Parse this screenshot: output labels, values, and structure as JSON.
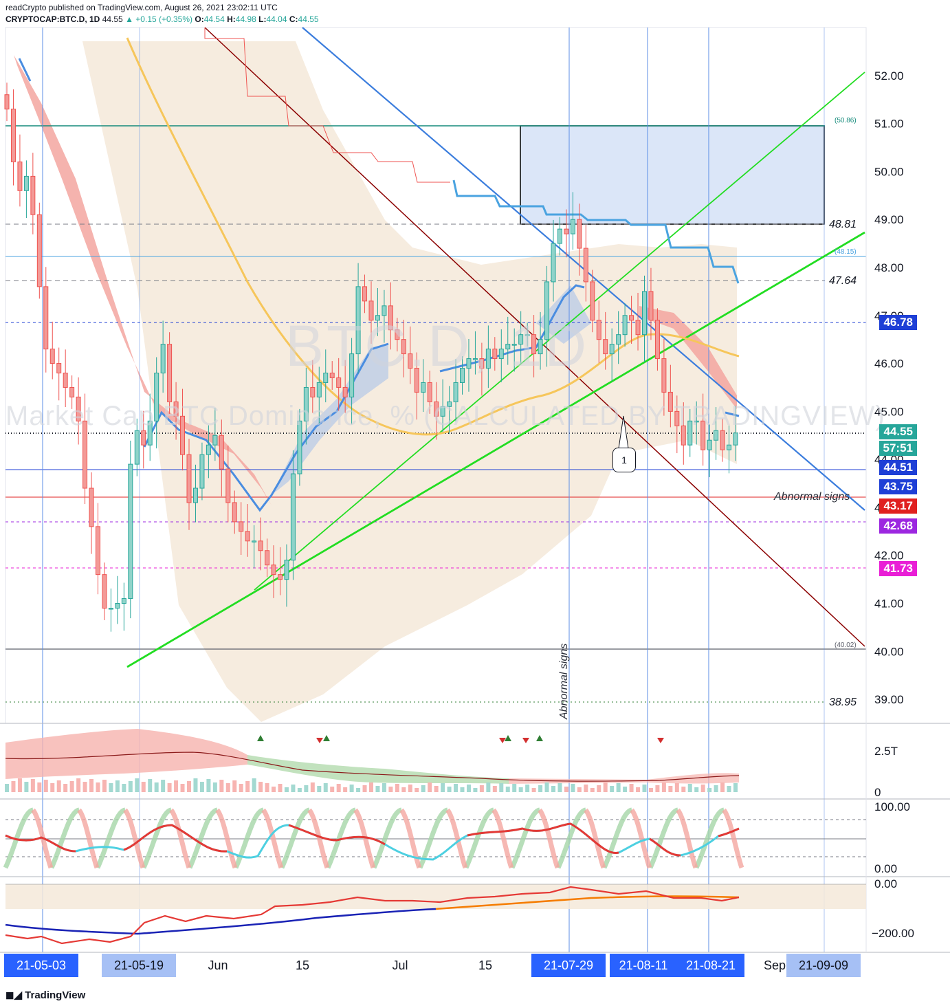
{
  "header": {
    "line1": "readCrypto published on TradingView.com, August 26, 2021 23:02:11 UTC",
    "symbol": "CRYPTOCAP:BTC.D, 1D",
    "last": "44.55",
    "change": "+0.15 (+0.35%)",
    "o_label": "O:",
    "o": "44.54",
    "h_label": "H:",
    "h": "44.98",
    "l_label": "L:",
    "l": "44.04",
    "c_label": "C:",
    "c": "44.55"
  },
  "watermark": {
    "big": "BTC.D, 1D",
    "sub": "Market Cap BTC Dominance, % (CALCULATED BY TRADINGVIEW)"
  },
  "price_labels": [
    {
      "text": "46.78",
      "bg": "#1e3fd6"
    },
    {
      "text": "44.55",
      "bg": "#26a69a"
    },
    {
      "text": "57:51",
      "bg": "#26a69a"
    },
    {
      "text": "44.51",
      "bg": "#1e3fd6"
    },
    {
      "text": "43.75",
      "bg": "#1e3fd6"
    },
    {
      "text": "43.17",
      "bg": "#e02020"
    },
    {
      "text": "42.68",
      "bg": "#9c27e0"
    },
    {
      "text": "41.73",
      "bg": "#e91ed6"
    }
  ],
  "level_texts": {
    "l4881": "48.81",
    "l4764": "47.64",
    "l3895": "38.95",
    "l5086": "(50.86)",
    "l4815": "(48.15)",
    "l4002": "(40.02)"
  },
  "annotations": {
    "abnormal_h": "Abnormal signs",
    "abnormal_v": "Abnormal signs",
    "callout": "1"
  },
  "x_axis": {
    "chips": [
      {
        "text": "21-05-03",
        "style": "dark"
      },
      {
        "text": "21-05-19",
        "style": "light"
      },
      {
        "text": "21-07-29",
        "style": "dark"
      },
      {
        "text": "21-08-11",
        "style": "dark"
      },
      {
        "text": "21-08-21",
        "style": "dark"
      },
      {
        "text": "21-09-09",
        "style": "light"
      }
    ],
    "plain": [
      "Jun",
      "15",
      "Jul",
      "15",
      "Sep"
    ]
  },
  "volume_axis": [
    "2.5T",
    "0"
  ],
  "osc_axis": [
    "100.00",
    "0.00"
  ],
  "bottom_axis": [
    "0.00",
    "−200.00"
  ],
  "footer": "TradingView",
  "chart_data": {
    "type": "candlestick",
    "y_axis_ticks": [
      52.0,
      51.0,
      50.0,
      49.0,
      48.0,
      47.0,
      46.0,
      45.0,
      44.0,
      43.0,
      42.0,
      41.0,
      40.0,
      39.0
    ],
    "ylim": [
      38.5,
      53.0
    ],
    "horizontal_levels": [
      50.86,
      48.81,
      48.15,
      47.64,
      46.78,
      44.55,
      44.51,
      43.17,
      42.68,
      41.73,
      40.02,
      38.95
    ],
    "close_series": [
      51.3,
      50.2,
      49.6,
      49.9,
      49.1,
      47.6,
      46.3,
      46.0,
      45.8,
      45.5,
      45.3,
      44.8,
      43.4,
      42.6,
      41.6,
      40.9,
      40.9,
      41.0,
      41.1,
      43.9,
      44.6,
      44.3,
      44.8,
      45.8,
      46.4,
      45.2,
      44.9,
      44.1,
      43.1,
      43.4,
      44.1,
      44.3,
      44.5,
      43.8,
      43.1,
      42.7,
      42.5,
      42.3,
      42.3,
      42.1,
      41.8,
      41.6,
      41.5,
      41.9,
      43.7,
      44.8,
      45.5,
      45.3,
      45.6,
      45.8,
      45.7,
      45.5,
      45.3,
      46.2,
      47.6,
      47.3,
      46.9,
      47.0,
      47.2,
      46.7,
      46.5,
      46.2,
      45.9,
      45.4,
      45.6,
      45.2,
      44.9,
      45.1,
      45.2,
      45.6,
      45.9,
      46.1,
      46.1,
      45.9,
      46.3,
      46.1,
      46.3,
      46.4,
      46.4,
      46.6,
      46.6,
      46.2,
      46.5,
      47.7,
      48.5,
      48.8,
      48.7,
      49.0,
      48.4,
      47.7,
      46.9,
      46.5,
      46.2,
      46.4,
      46.6,
      47.0,
      46.9,
      46.6,
      47.5,
      46.9,
      46.1,
      45.4,
      45.0,
      44.7,
      44.3,
      44.8,
      44.8,
      44.2,
      44.4,
      44.6,
      44.2,
      44.3,
      44.55
    ],
    "indicators": {
      "volume_axis_max_label": "2.5T",
      "oscillator_range": [
        0,
        100
      ],
      "bottom_range": [
        -200,
        0
      ]
    }
  }
}
